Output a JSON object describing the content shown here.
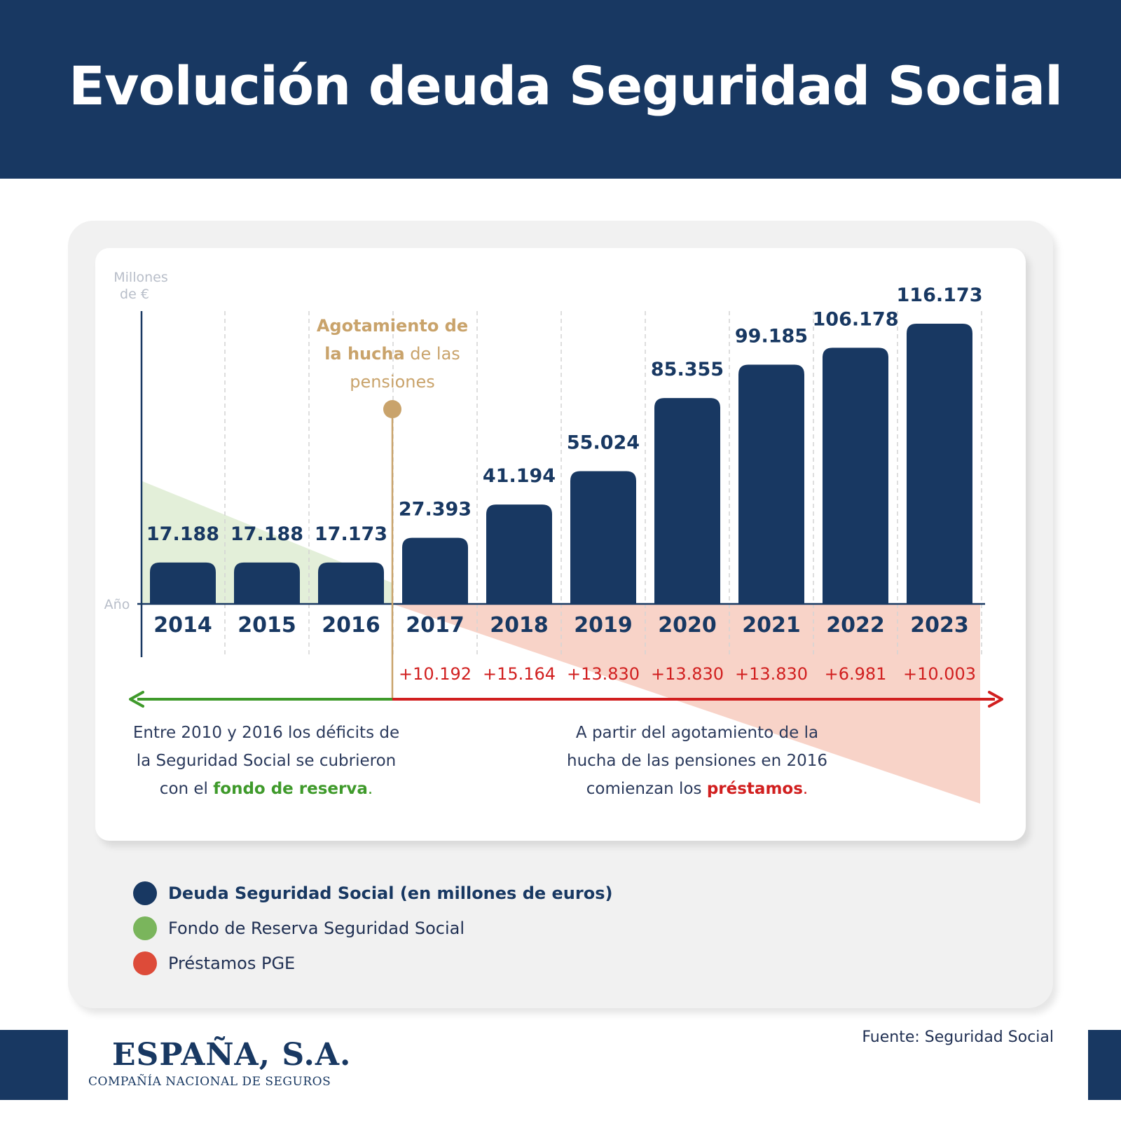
{
  "title": "Evolución deuda Seguridad Social",
  "colors": {
    "navy": "#183862",
    "green": "#3f9a2b",
    "green_area": "#e3efd9",
    "red": "#d11f1f",
    "red_area": "#f8d3c8",
    "gold": "#c9a36b",
    "legend_green": "#7ab55c",
    "legend_red": "#dd4b39"
  },
  "chart_data": {
    "type": "bar",
    "ylabel": "Millones de €",
    "xlabel": "Año",
    "categories": [
      "2014",
      "2015",
      "2016",
      "2017",
      "2018",
      "2019",
      "2020",
      "2021",
      "2022",
      "2023"
    ],
    "series": [
      {
        "name": "Deuda Seguridad Social (en millones de euros)",
        "values": [
          17188,
          17188,
          17173,
          27393,
          41194,
          55024,
          85355,
          99185,
          106178,
          116173
        ],
        "labels": [
          "17.188",
          "17.188",
          "17.173",
          "27.393",
          "41.194",
          "55.024",
          "85.355",
          "99.185",
          "106.178",
          "116.173"
        ]
      }
    ],
    "increments": {
      "categories": [
        "2017",
        "2018",
        "2019",
        "2020",
        "2021",
        "2022",
        "2023"
      ],
      "labels": [
        "+10.192",
        "+15.164",
        "+13.830",
        "+13.830",
        "+13.830",
        "+6.981",
        "+10.003"
      ]
    },
    "ylim": [
      0,
      120000
    ],
    "grid": "vertical dashed",
    "legend": "bottom-left"
  },
  "annotations": {
    "milestone": {
      "line1_bold": "Agotamiento de",
      "line2_bold": "la hucha",
      "line2_rest": " de las",
      "line3": "pensiones"
    },
    "left_note": {
      "line1": "Entre 2010 y 2016 los déficits de",
      "line2": "la Seguridad Social se cubrieron",
      "line3_pre": "con el ",
      "line3_highlight": "fondo de reserva",
      "line3_post": "."
    },
    "right_note": {
      "line1": "A partir del agotamiento de la",
      "line2": "hucha de las pensiones en 2016",
      "line3_pre": "comienzan los ",
      "line3_highlight": "préstamos",
      "line3_post": "."
    }
  },
  "legend": {
    "items": [
      {
        "label": "Deuda Seguridad Social (en millones de euros)"
      },
      {
        "label": "Fondo de Reserva Seguridad Social"
      },
      {
        "label": "Préstamos  PGE"
      }
    ]
  },
  "footer": {
    "logo_title": "ESPAÑA, S.A.",
    "logo_subtitle": "COMPAÑÍA NACIONAL DE SEGUROS",
    "source": "Fuente: Seguridad Social"
  }
}
